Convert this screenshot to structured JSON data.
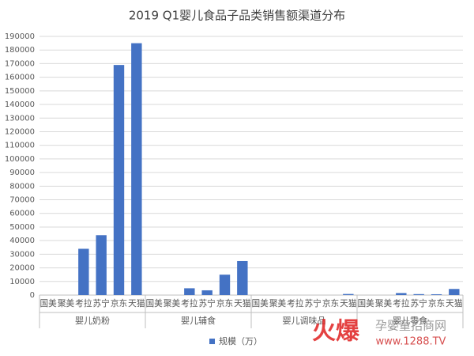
{
  "chart_data": {
    "type": "bar",
    "title": "2019 Q1婴儿食品子品类销售额渠道分布",
    "groups": [
      {
        "name": "婴儿奶粉",
        "categories": [
          "国美",
          "聚美",
          "考拉",
          "苏宁",
          "京东",
          "天猫"
        ]
      },
      {
        "name": "婴儿辅食",
        "categories": [
          "国美",
          "聚美",
          "考拉",
          "苏宁",
          "京东",
          "天猫"
        ]
      },
      {
        "name": "婴儿调味品",
        "categories": [
          "国美",
          "聚美",
          "考拉",
          "苏宁",
          "京东",
          "天猫"
        ]
      },
      {
        "name": "婴儿零食",
        "categories": [
          "国美",
          "聚美",
          "考拉",
          "苏宁",
          "京东",
          "天猫"
        ]
      }
    ],
    "series": [
      {
        "name": "规模（万）",
        "color": "#4472c4",
        "values": [
          0,
          0,
          34000,
          44000,
          169000,
          185000,
          0,
          0,
          5000,
          3500,
          15000,
          25000,
          0,
          0,
          0,
          0,
          0,
          800,
          0,
          0,
          1500,
          700,
          600,
          4500
        ]
      }
    ],
    "ylim": [
      0,
      190000
    ],
    "yticks": [
      0,
      10000,
      20000,
      30000,
      40000,
      50000,
      60000,
      70000,
      80000,
      90000,
      100000,
      110000,
      120000,
      130000,
      140000,
      150000,
      160000,
      170000,
      180000,
      190000
    ],
    "grid": true,
    "legend": "bottom"
  },
  "watermark": {
    "brand": "火爆",
    "site": "孕婴童招商网",
    "url": "www.1288.TV"
  }
}
